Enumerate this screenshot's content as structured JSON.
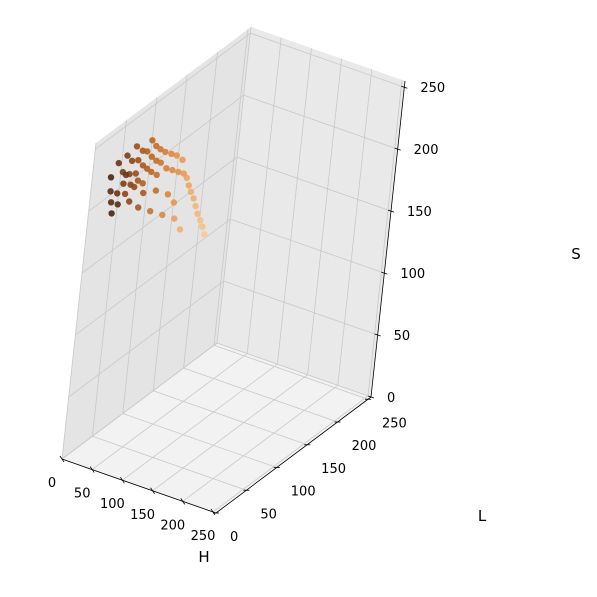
{
  "chart_data": {
    "type": "scatter",
    "title": "",
    "axes": {
      "x": {
        "label": "H",
        "range": [
          0,
          255
        ],
        "ticks": [
          0,
          50,
          100,
          150,
          200,
          250
        ]
      },
      "y": {
        "label": "L",
        "range": [
          0,
          255
        ],
        "ticks": [
          0,
          50,
          100,
          150,
          200,
          250
        ]
      },
      "z": {
        "label": "S",
        "range": [
          0,
          255
        ],
        "ticks": [
          0,
          50,
          100,
          150,
          200,
          250
        ]
      }
    },
    "grid": true,
    "legend": "none",
    "colors": {
      "pane_light": "#f2f2f2",
      "pane_mid": "#e9e9e9",
      "pane_dark": "#e4e4e4",
      "grid": "#c8c8c8"
    },
    "series": [
      {
        "points": [
          {
            "h": 12,
            "l": 20,
            "s": 222,
            "color": "#4a2510"
          },
          {
            "h": 12,
            "l": 22,
            "s": 210,
            "color": "#5a2c12"
          },
          {
            "h": 12,
            "l": 25,
            "s": 200,
            "color": "#5a2c12"
          },
          {
            "h": 12,
            "l": 28,
            "s": 190,
            "color": "#4a2510"
          },
          {
            "h": 13,
            "l": 30,
            "s": 230,
            "color": "#6b3412"
          },
          {
            "h": 14,
            "l": 32,
            "s": 205,
            "color": "#6b3412"
          },
          {
            "h": 14,
            "l": 35,
            "s": 195,
            "color": "#5a2c12"
          },
          {
            "h": 14,
            "l": 38,
            "s": 220,
            "color": "#7a3d14"
          },
          {
            "h": 15,
            "l": 40,
            "s": 210,
            "color": "#7a3d14"
          },
          {
            "h": 15,
            "l": 42,
            "s": 232,
            "color": "#7a3d14"
          },
          {
            "h": 15,
            "l": 45,
            "s": 200,
            "color": "#8a4516"
          },
          {
            "h": 16,
            "l": 48,
            "s": 215,
            "color": "#8a4516"
          },
          {
            "h": 16,
            "l": 50,
            "s": 225,
            "color": "#8a4516"
          },
          {
            "h": 16,
            "l": 52,
            "s": 205,
            "color": "#8a4516"
          },
          {
            "h": 17,
            "l": 55,
            "s": 235,
            "color": "#9a4e18"
          },
          {
            "h": 17,
            "l": 58,
            "s": 212,
            "color": "#9a4e18"
          },
          {
            "h": 17,
            "l": 60,
            "s": 222,
            "color": "#9a4e18"
          },
          {
            "h": 18,
            "l": 62,
            "s": 205,
            "color": "#a8561a"
          },
          {
            "h": 18,
            "l": 65,
            "s": 228,
            "color": "#a8561a"
          },
          {
            "h": 18,
            "l": 68,
            "s": 215,
            "color": "#a8561a"
          },
          {
            "h": 19,
            "l": 70,
            "s": 200,
            "color": "#b25e1e"
          },
          {
            "h": 19,
            "l": 72,
            "s": 225,
            "color": "#b25e1e"
          },
          {
            "h": 19,
            "l": 75,
            "s": 210,
            "color": "#b25e1e"
          },
          {
            "h": 20,
            "l": 78,
            "s": 232,
            "color": "#bc6622"
          },
          {
            "h": 20,
            "l": 80,
            "s": 218,
            "color": "#bc6622"
          },
          {
            "h": 20,
            "l": 82,
            "s": 205,
            "color": "#bc6622"
          },
          {
            "h": 21,
            "l": 85,
            "s": 225,
            "color": "#c46e28"
          },
          {
            "h": 21,
            "l": 88,
            "s": 212,
            "color": "#c46e28"
          },
          {
            "h": 22,
            "l": 90,
            "s": 200,
            "color": "#c46e28"
          },
          {
            "h": 22,
            "l": 92,
            "s": 220,
            "color": "#cc7630"
          },
          {
            "h": 22,
            "l": 95,
            "s": 208,
            "color": "#cc7630"
          },
          {
            "h": 23,
            "l": 100,
            "s": 215,
            "color": "#d47e36"
          },
          {
            "h": 23,
            "l": 105,
            "s": 200,
            "color": "#d47e36"
          },
          {
            "h": 24,
            "l": 110,
            "s": 210,
            "color": "#dc883e"
          },
          {
            "h": 24,
            "l": 115,
            "s": 195,
            "color": "#dc883e"
          },
          {
            "h": 24,
            "l": 120,
            "s": 205,
            "color": "#e29148"
          },
          {
            "h": 25,
            "l": 125,
            "s": 190,
            "color": "#e29148"
          },
          {
            "h": 25,
            "l": 130,
            "s": 198,
            "color": "#e89a52"
          },
          {
            "h": 25,
            "l": 135,
            "s": 185,
            "color": "#e89a52"
          },
          {
            "h": 26,
            "l": 140,
            "s": 180,
            "color": "#eca35e"
          },
          {
            "h": 26,
            "l": 145,
            "s": 172,
            "color": "#eca35e"
          },
          {
            "h": 26,
            "l": 150,
            "s": 165,
            "color": "#f0ad6a"
          },
          {
            "h": 27,
            "l": 155,
            "s": 158,
            "color": "#f0ad6a"
          },
          {
            "h": 27,
            "l": 160,
            "s": 150,
            "color": "#f3b676"
          },
          {
            "h": 27,
            "l": 165,
            "s": 142,
            "color": "#f3b676"
          },
          {
            "h": 28,
            "l": 170,
            "s": 135,
            "color": "#f6bf84"
          },
          {
            "h": 28,
            "l": 175,
            "s": 128,
            "color": "#f6bf84"
          },
          {
            "h": 28,
            "l": 180,
            "s": 120,
            "color": "#f8c892"
          },
          {
            "h": 16,
            "l": 70,
            "s": 180,
            "color": "#a05a24"
          },
          {
            "h": 18,
            "l": 90,
            "s": 170,
            "color": "#c07434"
          },
          {
            "h": 20,
            "l": 110,
            "s": 160,
            "color": "#d88844"
          },
          {
            "h": 14,
            "l": 55,
            "s": 190,
            "color": "#8a4818"
          },
          {
            "h": 22,
            "l": 130,
            "s": 150,
            "color": "#e8a060"
          },
          {
            "h": 24,
            "l": 140,
            "s": 138,
            "color": "#f0b070"
          },
          {
            "h": 13,
            "l": 45,
            "s": 215,
            "color": "#6e3614"
          },
          {
            "h": 15,
            "l": 60,
            "s": 200,
            "color": "#8e4a18"
          },
          {
            "h": 17,
            "l": 75,
            "s": 190,
            "color": "#a6581e"
          },
          {
            "h": 19,
            "l": 95,
            "s": 185,
            "color": "#c26c2a"
          },
          {
            "h": 21,
            "l": 115,
            "s": 175,
            "color": "#d8843c"
          },
          {
            "h": 23,
            "l": 125,
            "s": 165,
            "color": "#e4964e"
          }
        ]
      }
    ]
  }
}
